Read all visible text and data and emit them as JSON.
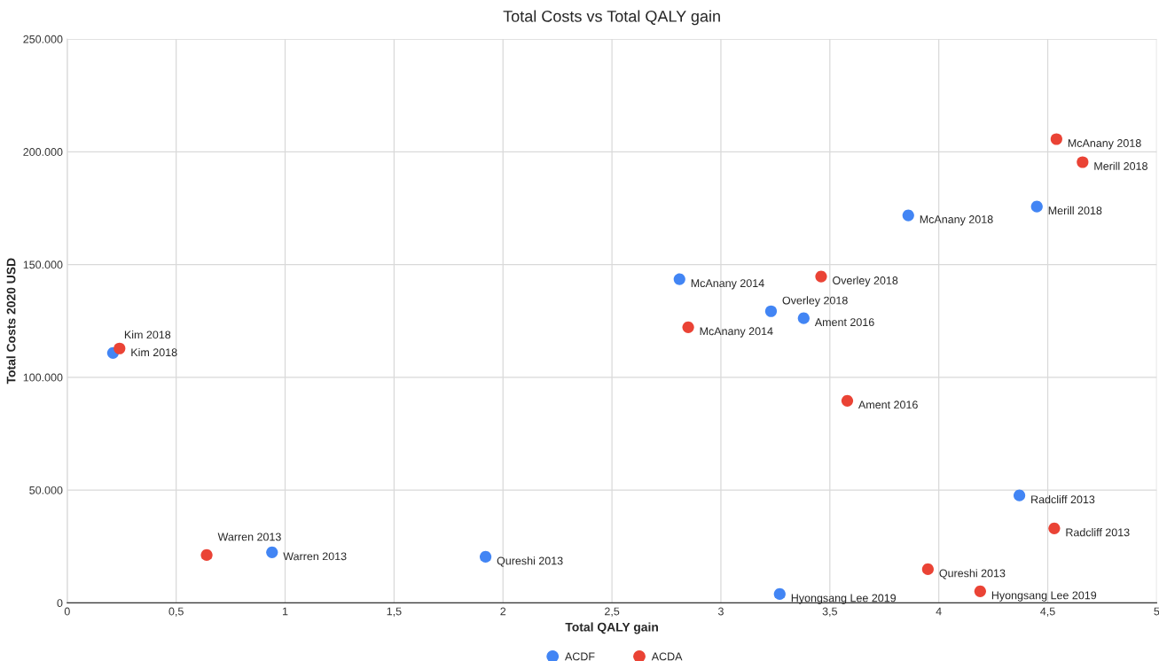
{
  "chart_data": {
    "type": "scatter",
    "title": "Total Costs vs Total QALY gain",
    "xlabel": "Total QALY gain",
    "ylabel": "Total Costs 2020 USD",
    "xlim": [
      0,
      5
    ],
    "ylim": [
      0,
      250000
    ],
    "xticks": [
      0,
      {
        "value": 0.5,
        "label": "0,5"
      },
      1,
      {
        "value": 1.5,
        "label": "1,5"
      },
      2,
      {
        "value": 2.5,
        "label": "2,5"
      },
      3,
      {
        "value": 3.5,
        "label": "3,5"
      },
      4,
      {
        "value": 4.5,
        "label": "4,5"
      },
      5
    ],
    "yticks": [
      0,
      {
        "value": 50000,
        "label": "50.000"
      },
      {
        "value": 100000,
        "label": "100.000"
      },
      {
        "value": 150000,
        "label": "150.000"
      },
      {
        "value": 200000,
        "label": "200.000"
      },
      {
        "value": 250000,
        "label": "250.000"
      }
    ],
    "grid": true,
    "legend": "bottom",
    "marker": "circle",
    "series": [
      {
        "name": "ACDF",
        "color": "#4285f4",
        "x": [
          0.21,
          0.94,
          1.92,
          2.81,
          3.23,
          3.38,
          3.27,
          3.86,
          4.45,
          4.37
        ],
        "values": [
          110800,
          22400,
          20400,
          143500,
          129300,
          126200,
          3900,
          171800,
          175700,
          47600
        ]
      },
      {
        "name": "ACDA",
        "color": "#ea4335",
        "x": [
          0.24,
          0.64,
          2.85,
          3.46,
          3.58,
          3.95,
          4.19,
          4.53,
          4.54,
          4.66
        ],
        "values": [
          112800,
          21200,
          122200,
          144700,
          89600,
          14900,
          5100,
          33000,
          205600,
          195400
        ]
      }
    ],
    "annotations": [
      {
        "text": "Kim 2018",
        "x": 0.21,
        "y": 110800
      },
      {
        "text": "Warren 2013",
        "x": 0.94,
        "y": 22400
      },
      {
        "text": "Qureshi 2013",
        "x": 1.92,
        "y": 20400
      },
      {
        "text": "McAnany 2014",
        "x": 2.81,
        "y": 143500
      },
      {
        "text": "Overley 2018",
        "x": 3.23,
        "y": 129300
      },
      {
        "text": "Ament 2016",
        "x": 3.38,
        "y": 126200
      },
      {
        "text": "Hyongsang Lee 2019",
        "x": 3.27,
        "y": 3900
      },
      {
        "text": "McAnany 2018",
        "x": 3.86,
        "y": 171800
      },
      {
        "text": "Merill 2018",
        "x": 4.45,
        "y": 175700
      },
      {
        "text": "Radcliff 2013",
        "x": 4.37,
        "y": 47600
      },
      {
        "text": "Kim 2018",
        "x": 0.24,
        "y": 112800
      },
      {
        "text": "Warren 2013",
        "x": 0.64,
        "y": 21200
      },
      {
        "text": "McAnany 2014",
        "x": 2.85,
        "y": 122200
      },
      {
        "text": "Overley 2018",
        "x": 3.46,
        "y": 144700
      },
      {
        "text": "Ament 2016",
        "x": 3.58,
        "y": 89600
      },
      {
        "text": "Qureshi 2013",
        "x": 3.95,
        "y": 14900
      },
      {
        "text": "Hyongsang Lee 2019",
        "x": 4.19,
        "y": 5100
      },
      {
        "text": "Radcliff 2013",
        "x": 4.53,
        "y": 33000
      },
      {
        "text": "McAnany 2018",
        "x": 4.54,
        "y": 205600
      },
      {
        "text": "Merill 2018",
        "x": 4.66,
        "y": 195400
      }
    ]
  }
}
